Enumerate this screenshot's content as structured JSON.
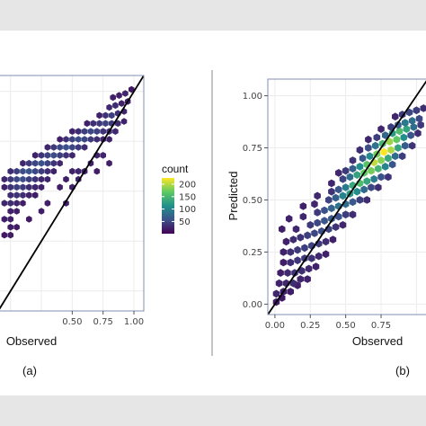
{
  "figure": {
    "panel_a_label": "(a)",
    "panel_b_label": "(b)",
    "colors": {
      "background": "#e6e6e6",
      "figure_bg": "#ffffff",
      "panel_border": "#7f8fb0",
      "grid": "#ebebeb",
      "identity_line": "#000000",
      "viridis": [
        "#440154",
        "#3b528b",
        "#21918c",
        "#5ec962",
        "#fde725"
      ]
    }
  },
  "chart_data": [
    {
      "type": "heatmap",
      "subtype": "hexbin",
      "xlabel": "Observed",
      "ylabel": "",
      "xlim": [
        -0.1,
        1.08
      ],
      "ylim": [
        -0.1,
        1.08
      ],
      "x_tick_labels": [
        "0.50",
        "0.75",
        "1.00"
      ],
      "x_tick_values": [
        0.5,
        0.75,
        1.0
      ],
      "y_tick_labels": [],
      "identity_line": true,
      "legend": {
        "title": "count",
        "position": "right",
        "labels": [
          "200",
          "150",
          "100",
          "50"
        ],
        "values": [
          200,
          150,
          100,
          50
        ],
        "range": [
          1,
          225
        ]
      },
      "hex_size": 0.024,
      "cells": [
        [
          0.83,
          0.97,
          5
        ],
        [
          0.88,
          0.98,
          4
        ],
        [
          0.93,
          0.99,
          6
        ],
        [
          0.98,
          1.01,
          3
        ],
        [
          0.8,
          0.92,
          7
        ],
        [
          0.85,
          0.93,
          8
        ],
        [
          0.9,
          0.94,
          5
        ],
        [
          0.95,
          0.95,
          4
        ],
        [
          0.72,
          0.88,
          5
        ],
        [
          0.77,
          0.88,
          10
        ],
        [
          0.82,
          0.88,
          14
        ],
        [
          0.87,
          0.89,
          9
        ],
        [
          0.92,
          0.9,
          6
        ],
        [
          0.62,
          0.84,
          4
        ],
        [
          0.67,
          0.84,
          9
        ],
        [
          0.72,
          0.84,
          12
        ],
        [
          0.77,
          0.84,
          16
        ],
        [
          0.82,
          0.84,
          12
        ],
        [
          0.87,
          0.84,
          8
        ],
        [
          0.92,
          0.85,
          5
        ],
        [
          0.5,
          0.8,
          5
        ],
        [
          0.55,
          0.8,
          8
        ],
        [
          0.6,
          0.8,
          14
        ],
        [
          0.65,
          0.8,
          18
        ],
        [
          0.7,
          0.8,
          15
        ],
        [
          0.75,
          0.8,
          10
        ],
        [
          0.8,
          0.8,
          9
        ],
        [
          0.85,
          0.8,
          7
        ],
        [
          0.4,
          0.76,
          4
        ],
        [
          0.45,
          0.76,
          9
        ],
        [
          0.5,
          0.76,
          16
        ],
        [
          0.55,
          0.76,
          20
        ],
        [
          0.6,
          0.76,
          18
        ],
        [
          0.65,
          0.76,
          12
        ],
        [
          0.7,
          0.76,
          8
        ],
        [
          0.75,
          0.76,
          6
        ],
        [
          0.8,
          0.76,
          5
        ],
        [
          0.3,
          0.72,
          6
        ],
        [
          0.35,
          0.72,
          12
        ],
        [
          0.4,
          0.72,
          18
        ],
        [
          0.45,
          0.72,
          22
        ],
        [
          0.5,
          0.72,
          18
        ],
        [
          0.55,
          0.72,
          12
        ],
        [
          0.6,
          0.72,
          8
        ],
        [
          0.2,
          0.68,
          5
        ],
        [
          0.25,
          0.68,
          10
        ],
        [
          0.3,
          0.68,
          16
        ],
        [
          0.35,
          0.68,
          20
        ],
        [
          0.4,
          0.68,
          14
        ],
        [
          0.45,
          0.68,
          10
        ],
        [
          0.5,
          0.68,
          6
        ],
        [
          0.7,
          0.68,
          5
        ],
        [
          0.75,
          0.68,
          6
        ],
        [
          0.1,
          0.64,
          6
        ],
        [
          0.15,
          0.64,
          12
        ],
        [
          0.2,
          0.64,
          18
        ],
        [
          0.25,
          0.64,
          22
        ],
        [
          0.3,
          0.64,
          16
        ],
        [
          0.35,
          0.64,
          10
        ],
        [
          0.4,
          0.64,
          6
        ],
        [
          0.65,
          0.64,
          5
        ],
        [
          0.8,
          0.64,
          4
        ],
        [
          0.0,
          0.6,
          8
        ],
        [
          0.05,
          0.6,
          14
        ],
        [
          0.1,
          0.6,
          20
        ],
        [
          0.15,
          0.6,
          24
        ],
        [
          0.2,
          0.6,
          18
        ],
        [
          0.25,
          0.6,
          12
        ],
        [
          0.3,
          0.6,
          8
        ],
        [
          0.35,
          0.6,
          5
        ],
        [
          0.5,
          0.6,
          5
        ],
        [
          0.55,
          0.6,
          6
        ],
        [
          0.6,
          0.6,
          5
        ],
        [
          0.7,
          0.6,
          4
        ],
        [
          -0.05,
          0.56,
          6
        ],
        [
          0.0,
          0.56,
          12
        ],
        [
          0.05,
          0.56,
          18
        ],
        [
          0.1,
          0.56,
          20
        ],
        [
          0.15,
          0.56,
          14
        ],
        [
          0.2,
          0.56,
          10
        ],
        [
          0.25,
          0.56,
          6
        ],
        [
          0.3,
          0.56,
          5
        ],
        [
          0.45,
          0.56,
          4
        ],
        [
          0.55,
          0.56,
          6
        ],
        [
          -0.05,
          0.52,
          5
        ],
        [
          0.0,
          0.52,
          10
        ],
        [
          0.05,
          0.52,
          14
        ],
        [
          0.1,
          0.52,
          12
        ],
        [
          0.15,
          0.52,
          8
        ],
        [
          0.2,
          0.52,
          6
        ],
        [
          0.25,
          0.52,
          5
        ],
        [
          0.4,
          0.52,
          4
        ],
        [
          0.5,
          0.52,
          5
        ],
        [
          0.0,
          0.48,
          8
        ],
        [
          0.05,
          0.48,
          10
        ],
        [
          0.1,
          0.48,
          8
        ],
        [
          0.15,
          0.48,
          5
        ],
        [
          0.2,
          0.48,
          4
        ],
        [
          -0.05,
          0.44,
          6
        ],
        [
          0.0,
          0.44,
          8
        ],
        [
          0.05,
          0.44,
          6
        ],
        [
          0.1,
          0.44,
          4
        ],
        [
          0.3,
          0.44,
          4
        ],
        [
          0.45,
          0.44,
          4
        ],
        [
          0.0,
          0.4,
          5
        ],
        [
          0.05,
          0.4,
          4
        ],
        [
          0.25,
          0.4,
          4
        ],
        [
          -0.05,
          0.36,
          4
        ],
        [
          0.0,
          0.36,
          5
        ],
        [
          0.15,
          0.36,
          3
        ],
        [
          0.0,
          0.32,
          4
        ],
        [
          0.05,
          0.32,
          3
        ],
        [
          -0.05,
          0.28,
          3
        ],
        [
          0.0,
          0.28,
          4
        ]
      ]
    },
    {
      "type": "heatmap",
      "subtype": "hexbin",
      "xlabel": "Observed",
      "ylabel": "Predicted",
      "xlim": [
        -0.05,
        1.08
      ],
      "ylim": [
        -0.05,
        1.08
      ],
      "x_tick_labels": [
        "0.00",
        "0.25",
        "0.50",
        "0.75"
      ],
      "x_tick_values": [
        0,
        0.25,
        0.5,
        0.75
      ],
      "y_tick_labels": [
        "0.00",
        "0.25",
        "0.50",
        "0.75",
        "1.00"
      ],
      "y_tick_values": [
        0,
        0.25,
        0.5,
        0.75,
        1.0
      ],
      "identity_line": true,
      "hex_size": 0.024,
      "cells": [
        [
          0.01,
          0.01,
          4
        ],
        [
          0.05,
          0.03,
          3
        ],
        [
          0.01,
          0.05,
          6
        ],
        [
          0.06,
          0.06,
          5
        ],
        [
          0.11,
          0.06,
          4
        ],
        [
          0.16,
          0.09,
          4
        ],
        [
          0.03,
          0.1,
          5
        ],
        [
          0.08,
          0.1,
          6
        ],
        [
          0.13,
          0.1,
          8
        ],
        [
          0.18,
          0.12,
          6
        ],
        [
          0.23,
          0.12,
          5
        ],
        [
          0.04,
          0.15,
          4
        ],
        [
          0.09,
          0.15,
          7
        ],
        [
          0.14,
          0.15,
          10
        ],
        [
          0.19,
          0.16,
          9
        ],
        [
          0.24,
          0.17,
          7
        ],
        [
          0.29,
          0.18,
          5
        ],
        [
          0.06,
          0.2,
          4
        ],
        [
          0.11,
          0.2,
          8
        ],
        [
          0.16,
          0.21,
          11
        ],
        [
          0.21,
          0.22,
          12
        ],
        [
          0.26,
          0.22,
          10
        ],
        [
          0.31,
          0.23,
          7
        ],
        [
          0.36,
          0.24,
          5
        ],
        [
          0.06,
          0.25,
          5
        ],
        [
          0.11,
          0.25,
          9
        ],
        [
          0.16,
          0.26,
          12
        ],
        [
          0.21,
          0.27,
          14
        ],
        [
          0.26,
          0.28,
          15
        ],
        [
          0.31,
          0.29,
          12
        ],
        [
          0.36,
          0.3,
          8
        ],
        [
          0.41,
          0.31,
          5
        ],
        [
          0.08,
          0.3,
          5
        ],
        [
          0.13,
          0.31,
          8
        ],
        [
          0.18,
          0.32,
          10
        ],
        [
          0.23,
          0.33,
          14
        ],
        [
          0.28,
          0.34,
          18
        ],
        [
          0.33,
          0.35,
          20
        ],
        [
          0.38,
          0.36,
          16
        ],
        [
          0.43,
          0.37,
          10
        ],
        [
          0.48,
          0.38,
          6
        ],
        [
          0.05,
          0.36,
          4
        ],
        [
          0.15,
          0.36,
          6
        ],
        [
          0.25,
          0.38,
          12
        ],
        [
          0.3,
          0.39,
          18
        ],
        [
          0.35,
          0.4,
          24
        ],
        [
          0.4,
          0.41,
          28
        ],
        [
          0.45,
          0.42,
          22
        ],
        [
          0.5,
          0.43,
          14
        ],
        [
          0.55,
          0.43,
          8
        ],
        [
          0.1,
          0.41,
          5
        ],
        [
          0.2,
          0.42,
          6
        ],
        [
          0.3,
          0.44,
          12
        ],
        [
          0.35,
          0.45,
          22
        ],
        [
          0.4,
          0.46,
          34
        ],
        [
          0.45,
          0.47,
          46
        ],
        [
          0.5,
          0.48,
          40
        ],
        [
          0.55,
          0.49,
          26
        ],
        [
          0.6,
          0.5,
          14
        ],
        [
          0.65,
          0.5,
          8
        ],
        [
          0.2,
          0.47,
          5
        ],
        [
          0.28,
          0.48,
          6
        ],
        [
          0.38,
          0.5,
          16
        ],
        [
          0.43,
          0.51,
          30
        ],
        [
          0.48,
          0.52,
          58
        ],
        [
          0.53,
          0.53,
          80
        ],
        [
          0.58,
          0.54,
          66
        ],
        [
          0.63,
          0.55,
          38
        ],
        [
          0.68,
          0.56,
          18
        ],
        [
          0.73,
          0.56,
          8
        ],
        [
          0.3,
          0.52,
          6
        ],
        [
          0.4,
          0.54,
          10
        ],
        [
          0.45,
          0.55,
          24
        ],
        [
          0.5,
          0.56,
          52
        ],
        [
          0.55,
          0.57,
          96
        ],
        [
          0.6,
          0.58,
          120
        ],
        [
          0.65,
          0.59,
          94
        ],
        [
          0.7,
          0.6,
          52
        ],
        [
          0.75,
          0.61,
          22
        ],
        [
          0.8,
          0.61,
          10
        ],
        [
          0.4,
          0.58,
          6
        ],
        [
          0.48,
          0.6,
          16
        ],
        [
          0.53,
          0.61,
          40
        ],
        [
          0.58,
          0.62,
          90
        ],
        [
          0.63,
          0.63,
          140
        ],
        [
          0.68,
          0.64,
          150
        ],
        [
          0.73,
          0.65,
          110
        ],
        [
          0.78,
          0.66,
          60
        ],
        [
          0.83,
          0.67,
          24
        ],
        [
          0.45,
          0.63,
          6
        ],
        [
          0.5,
          0.64,
          12
        ],
        [
          0.55,
          0.65,
          30
        ],
        [
          0.6,
          0.66,
          70
        ],
        [
          0.65,
          0.67,
          130
        ],
        [
          0.7,
          0.68,
          190
        ],
        [
          0.75,
          0.69,
          160
        ],
        [
          0.8,
          0.7,
          96
        ],
        [
          0.85,
          0.71,
          40
        ],
        [
          0.9,
          0.71,
          14
        ],
        [
          0.55,
          0.69,
          10
        ],
        [
          0.62,
          0.7,
          26
        ],
        [
          0.67,
          0.71,
          64
        ],
        [
          0.72,
          0.72,
          150
        ],
        [
          0.77,
          0.73,
          225
        ],
        [
          0.82,
          0.74,
          180
        ],
        [
          0.87,
          0.75,
          90
        ],
        [
          0.92,
          0.76,
          30
        ],
        [
          0.97,
          0.76,
          10
        ],
        [
          0.6,
          0.74,
          8
        ],
        [
          0.66,
          0.75,
          20
        ],
        [
          0.71,
          0.76,
          46
        ],
        [
          0.76,
          0.77,
          110
        ],
        [
          0.81,
          0.78,
          170
        ],
        [
          0.86,
          0.79,
          140
        ],
        [
          0.91,
          0.8,
          70
        ],
        [
          0.96,
          0.81,
          24
        ],
        [
          1.01,
          0.82,
          8
        ],
        [
          0.66,
          0.79,
          6
        ],
        [
          0.72,
          0.8,
          14
        ],
        [
          0.78,
          0.81,
          36
        ],
        [
          0.83,
          0.82,
          80
        ],
        [
          0.88,
          0.83,
          120
        ],
        [
          0.93,
          0.84,
          90
        ],
        [
          0.98,
          0.85,
          40
        ],
        [
          1.03,
          0.86,
          12
        ],
        [
          0.75,
          0.84,
          6
        ],
        [
          0.82,
          0.85,
          14
        ],
        [
          0.87,
          0.86,
          30
        ],
        [
          0.92,
          0.87,
          50
        ],
        [
          0.97,
          0.88,
          40
        ],
        [
          1.02,
          0.89,
          18
        ],
        [
          0.85,
          0.9,
          6
        ],
        [
          0.9,
          0.91,
          12
        ],
        [
          0.95,
          0.92,
          18
        ],
        [
          1.0,
          0.93,
          14
        ],
        [
          1.05,
          0.94,
          8
        ]
      ]
    }
  ]
}
